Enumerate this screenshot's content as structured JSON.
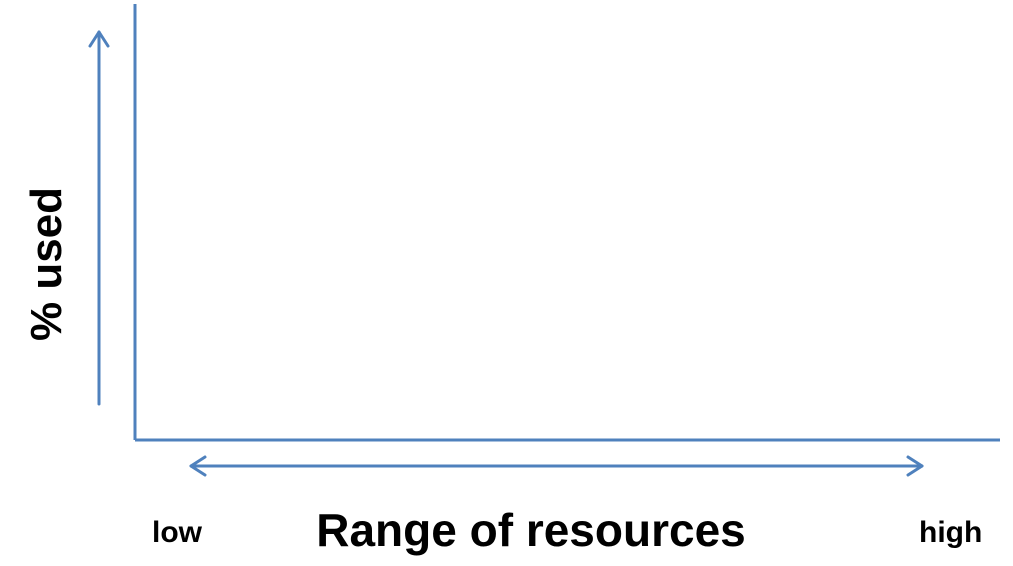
{
  "chart_data": {
    "type": "line",
    "title": "",
    "xlabel": "Range of resources",
    "ylabel": "% used",
    "x_range_labels": {
      "low": "low",
      "high": "high"
    },
    "series": [],
    "grid": false,
    "legend": "none"
  },
  "colors": {
    "axis": "#4f81bd",
    "text": "#000000"
  }
}
